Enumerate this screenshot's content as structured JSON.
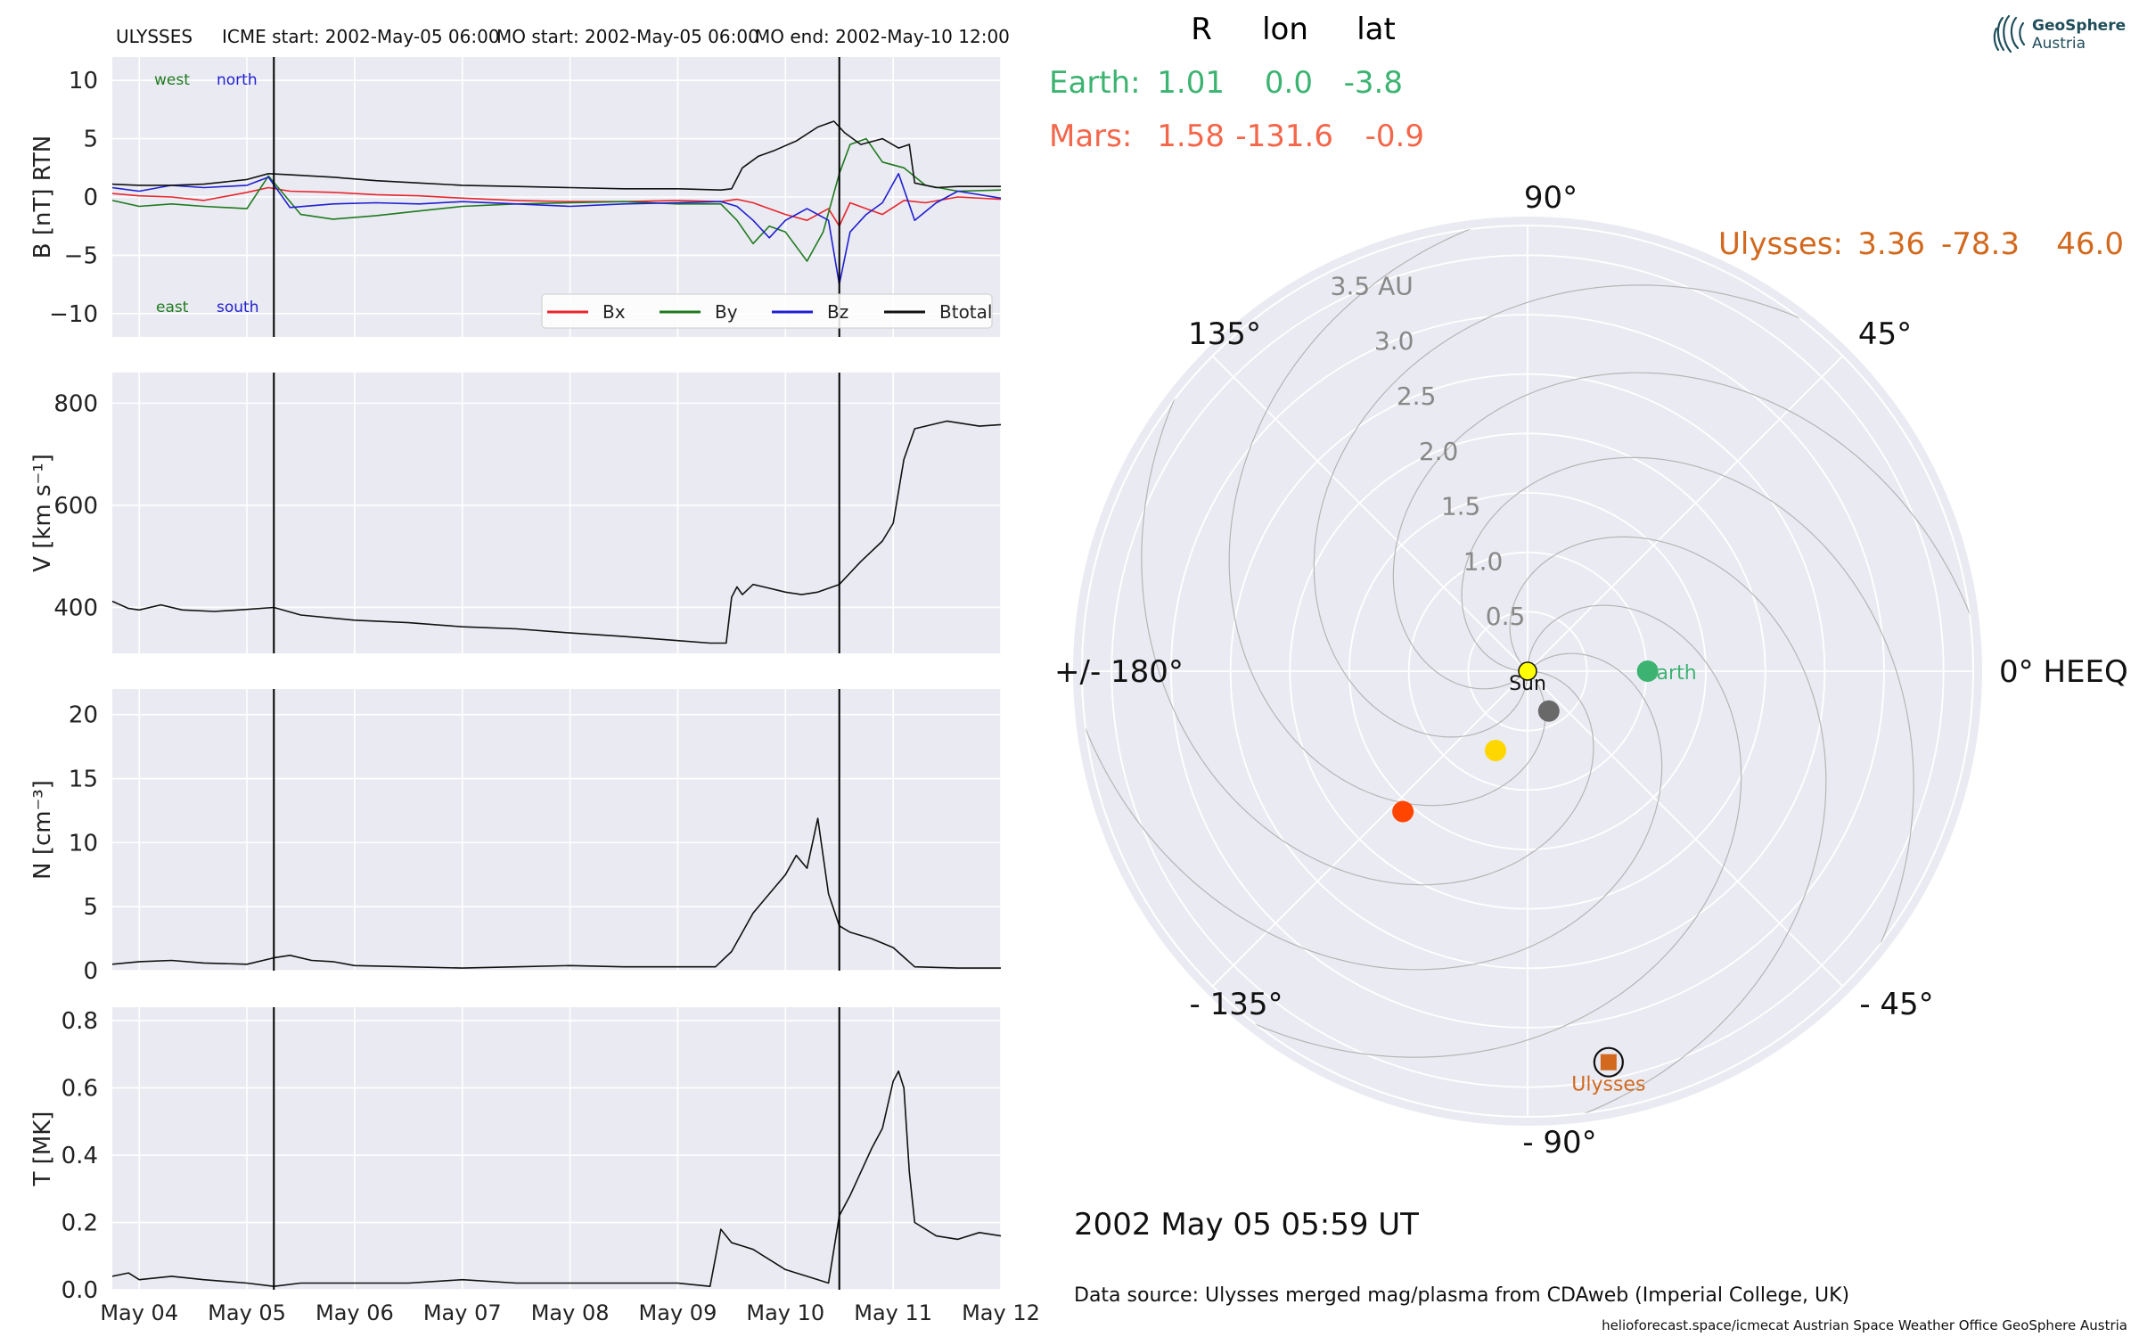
{
  "header": {
    "spacecraft": "ULYSSES",
    "icme_start": "ICME start: 2002-May-05 06:00",
    "mo_start": "MO start: 2002-May-05 06:00",
    "mo_end": "MO end: 2002-May-10 12:00"
  },
  "position_table": {
    "headers": [
      "R",
      "lon",
      "lat"
    ],
    "earth": {
      "label": "Earth:",
      "r": "1.01",
      "lon": "0.0",
      "lat": "-3.8",
      "color": "#3cb371"
    },
    "mars": {
      "label": "Mars:",
      "r": "1.58",
      "lon": "-131.6",
      "lat": "-0.9",
      "color": "#f4664a"
    },
    "ulysses": {
      "label": "Ulysses:",
      "r": "3.36",
      "lon": "-78.3",
      "lat": "46.0",
      "color": "#d2691e"
    }
  },
  "timestamp": "2002 May 05  05:59 UT",
  "data_source": "Data source: Ulysses merged mag/plasma from CDAweb (Imperial College, UK)",
  "footer": "helioforecast.space/icmecat   Austrian Space Weather Office   GeoSphere Austria",
  "logo": {
    "line1": "GeoSphere",
    "line2": "Austria",
    "color": "#1f4e5a"
  },
  "event_lines": {
    "icme_start_day": 5.25,
    "mo_end_day": 10.5
  },
  "x_axis": {
    "domain": [
      3.75,
      12.0
    ],
    "ticks": [
      4,
      5,
      6,
      7,
      8,
      9,
      10,
      11,
      12
    ],
    "labels": [
      "May 04",
      "May 05",
      "May 06",
      "May 07",
      "May 08",
      "May 09",
      "May 10",
      "May 11",
      "May 12"
    ]
  },
  "chart_data": [
    {
      "type": "line",
      "ylabel": "B [nT] RTN",
      "ylim": [
        -12,
        12
      ],
      "yticks": [
        -10,
        -5,
        0,
        5,
        10
      ],
      "ytick_labels": [
        "−10",
        "−5",
        "0",
        "5",
        "10"
      ],
      "corner_labels": {
        "west": "west",
        "north": "north",
        "east": "east",
        "south": "south"
      },
      "legend": [
        "Bx",
        "By",
        "Bz",
        "Btotal"
      ],
      "grid": true,
      "series": [
        {
          "name": "Bx",
          "color": "#e8262c",
          "x": [
            3.75,
            4.0,
            4.3,
            4.6,
            5.0,
            5.2,
            5.4,
            5.8,
            6.2,
            6.6,
            7.0,
            7.5,
            8.0,
            8.5,
            9.0,
            9.4,
            9.55,
            9.7,
            9.85,
            10.0,
            10.2,
            10.4,
            10.5,
            10.6,
            10.75,
            10.9,
            11.1,
            11.3,
            11.6,
            12.0
          ],
          "y": [
            0.3,
            0.1,
            0.0,
            -0.3,
            0.4,
            0.8,
            0.5,
            0.4,
            0.2,
            0.1,
            -0.1,
            -0.3,
            -0.4,
            -0.4,
            -0.3,
            -0.4,
            -0.2,
            -0.5,
            -1.0,
            -1.5,
            -2.0,
            -1.0,
            -2.5,
            -0.5,
            -1.0,
            -1.5,
            -0.3,
            -0.5,
            0.0,
            -0.2
          ]
        },
        {
          "name": "By",
          "color": "#1e7a1e",
          "x": [
            3.75,
            4.0,
            4.3,
            4.6,
            5.0,
            5.2,
            5.5,
            5.8,
            6.2,
            6.6,
            7.0,
            7.5,
            8.0,
            8.5,
            9.0,
            9.4,
            9.55,
            9.7,
            9.85,
            10.0,
            10.2,
            10.35,
            10.5,
            10.6,
            10.75,
            10.9,
            11.1,
            11.3,
            11.6,
            12.0
          ],
          "y": [
            -0.3,
            -0.8,
            -0.6,
            -0.8,
            -1.0,
            1.8,
            -1.5,
            -1.9,
            -1.6,
            -1.2,
            -0.8,
            -0.6,
            -0.5,
            -0.4,
            -0.6,
            -0.6,
            -2.0,
            -4.0,
            -2.5,
            -3.0,
            -5.5,
            -3.0,
            2.0,
            4.5,
            5.0,
            3.0,
            2.5,
            1.0,
            0.5,
            0.6
          ]
        },
        {
          "name": "Bz",
          "color": "#1f1fd1",
          "x": [
            3.75,
            4.0,
            4.3,
            4.6,
            5.0,
            5.2,
            5.4,
            5.8,
            6.2,
            6.6,
            7.0,
            7.5,
            8.0,
            8.5,
            9.0,
            9.4,
            9.55,
            9.7,
            9.85,
            10.0,
            10.2,
            10.4,
            10.5,
            10.6,
            10.75,
            10.9,
            11.05,
            11.2,
            11.4,
            11.6,
            12.0
          ],
          "y": [
            0.8,
            0.5,
            1.0,
            0.8,
            1.0,
            1.7,
            -0.9,
            -0.6,
            -0.5,
            -0.6,
            -0.4,
            -0.6,
            -0.8,
            -0.6,
            -0.5,
            -0.4,
            -0.8,
            -2.0,
            -3.5,
            -2.0,
            -1.0,
            -2.0,
            -7.5,
            -3.0,
            -1.5,
            -0.5,
            2.0,
            -2.0,
            -0.5,
            0.5,
            -0.1
          ]
        },
        {
          "name": "Btotal",
          "color": "#111111",
          "x": [
            3.75,
            4.0,
            4.3,
            4.6,
            5.0,
            5.2,
            5.4,
            5.8,
            6.2,
            6.6,
            7.0,
            7.5,
            8.0,
            8.5,
            9.0,
            9.4,
            9.5,
            9.6,
            9.75,
            9.9,
            10.1,
            10.3,
            10.45,
            10.55,
            10.7,
            10.9,
            11.05,
            11.15,
            11.2,
            11.4,
            11.6,
            12.0
          ],
          "y": [
            1.1,
            1.0,
            1.0,
            1.1,
            1.5,
            2.0,
            1.9,
            1.7,
            1.4,
            1.2,
            1.0,
            0.9,
            0.8,
            0.7,
            0.7,
            0.6,
            0.7,
            2.5,
            3.5,
            4.0,
            4.8,
            6.0,
            6.5,
            5.5,
            4.5,
            5.0,
            4.2,
            4.5,
            1.2,
            0.8,
            0.9,
            0.9
          ]
        }
      ]
    },
    {
      "type": "line",
      "ylabel": "V [km s⁻¹]",
      "ylim": [
        310,
        860
      ],
      "yticks": [
        400,
        600,
        800
      ],
      "ytick_labels": [
        "400",
        "600",
        "800"
      ],
      "grid": true,
      "series": [
        {
          "name": "V",
          "color": "#111111",
          "x": [
            3.75,
            3.9,
            4.0,
            4.2,
            4.4,
            4.7,
            5.0,
            5.25,
            5.5,
            6.0,
            6.5,
            7.0,
            7.5,
            8.0,
            8.5,
            9.0,
            9.3,
            9.45,
            9.5,
            9.55,
            9.6,
            9.7,
            9.8,
            10.0,
            10.15,
            10.3,
            10.5,
            10.7,
            10.9,
            11.0,
            11.1,
            11.2,
            11.5,
            11.8,
            12.0
          ],
          "y": [
            412,
            398,
            395,
            405,
            395,
            392,
            396,
            400,
            385,
            375,
            370,
            362,
            358,
            350,
            343,
            335,
            330,
            330,
            420,
            440,
            425,
            445,
            440,
            430,
            425,
            430,
            445,
            490,
            530,
            565,
            690,
            750,
            765,
            755,
            758
          ]
        }
      ]
    },
    {
      "type": "line",
      "ylabel": "N [cm⁻³]",
      "ylim": [
        0,
        22
      ],
      "yticks": [
        0,
        5,
        10,
        15,
        20
      ],
      "ytick_labels": [
        "0",
        "5",
        "10",
        "15",
        "20"
      ],
      "grid": true,
      "series": [
        {
          "name": "N",
          "color": "#111111",
          "x": [
            3.75,
            4.0,
            4.3,
            4.6,
            5.0,
            5.25,
            5.4,
            5.6,
            5.8,
            6.0,
            6.5,
            7.0,
            7.5,
            8.0,
            8.5,
            9.0,
            9.35,
            9.5,
            9.6,
            9.7,
            9.8,
            9.9,
            10.0,
            10.1,
            10.2,
            10.3,
            10.4,
            10.5,
            10.6,
            10.8,
            11.0,
            11.2,
            11.6,
            12.0
          ],
          "y": [
            0.5,
            0.7,
            0.8,
            0.6,
            0.5,
            1.0,
            1.2,
            0.8,
            0.7,
            0.4,
            0.3,
            0.2,
            0.3,
            0.4,
            0.3,
            0.3,
            0.3,
            1.5,
            3.0,
            4.5,
            5.5,
            6.5,
            7.5,
            9.0,
            8.0,
            11.9,
            6.0,
            3.5,
            3.0,
            2.5,
            1.8,
            0.3,
            0.2,
            0.2
          ]
        }
      ]
    },
    {
      "type": "line",
      "ylabel": "T [MK]",
      "ylim": [
        0,
        0.84
      ],
      "yticks": [
        0.0,
        0.2,
        0.4,
        0.6,
        0.8
      ],
      "ytick_labels": [
        "0.0",
        "0.2",
        "0.4",
        "0.6",
        "0.8"
      ],
      "grid": true,
      "series": [
        {
          "name": "T",
          "color": "#111111",
          "x": [
            3.75,
            3.9,
            4.0,
            4.3,
            4.6,
            5.0,
            5.25,
            5.5,
            6.0,
            6.5,
            7.0,
            7.5,
            8.0,
            8.5,
            9.0,
            9.3,
            9.4,
            9.5,
            9.6,
            9.7,
            9.8,
            9.9,
            10.0,
            10.2,
            10.4,
            10.5,
            10.6,
            10.7,
            10.8,
            10.9,
            11.0,
            11.05,
            11.1,
            11.15,
            11.2,
            11.4,
            11.6,
            11.8,
            12.0
          ],
          "y": [
            0.04,
            0.05,
            0.03,
            0.04,
            0.03,
            0.02,
            0.01,
            0.02,
            0.02,
            0.02,
            0.03,
            0.02,
            0.02,
            0.02,
            0.02,
            0.01,
            0.18,
            0.14,
            0.13,
            0.12,
            0.1,
            0.08,
            0.06,
            0.04,
            0.02,
            0.22,
            0.28,
            0.35,
            0.42,
            0.48,
            0.62,
            0.65,
            0.6,
            0.35,
            0.2,
            0.16,
            0.15,
            0.17,
            0.16
          ]
        }
      ]
    },
    {
      "type": "scatter",
      "projection": "polar",
      "angle_labels": [
        "90°",
        "45°",
        "0° HEEQ",
        "- 45°",
        "- 90°",
        "- 135°",
        "+/- 180°",
        "135°"
      ],
      "radial_tick_labels": [
        "0.5",
        "1.0",
        "1.5",
        "2.0",
        "2.5",
        "3.0",
        "3.5 AU"
      ],
      "radial_ticks": [
        0.5,
        1.0,
        1.5,
        2.0,
        2.5,
        3.0,
        3.5
      ],
      "rlim": [
        0,
        3.75
      ],
      "label_angle_deg": 112,
      "spiral_offsets_deg": [
        0,
        45,
        90,
        135,
        180,
        225,
        270,
        315
      ],
      "bodies": [
        {
          "name": "Sun",
          "label": "Sun",
          "r": 0.0,
          "lon": 0.0,
          "color": "#ffff00",
          "marker": "circle-outlined"
        },
        {
          "name": "Earth",
          "label": "Earth",
          "r": 1.01,
          "lon": 0.0,
          "color": "#3cb371",
          "marker": "circle"
        },
        {
          "name": "Mercury",
          "r": 0.38,
          "lon": -62,
          "color": "#696969",
          "marker": "circle"
        },
        {
          "name": "Venus",
          "r": 0.72,
          "lon": -112,
          "color": "#ffd700",
          "marker": "circle"
        },
        {
          "name": "Mars",
          "r": 1.58,
          "lon": -131.6,
          "color": "#ff4500",
          "marker": "circle"
        },
        {
          "name": "Ulysses",
          "label": "Ulysses",
          "r": 3.36,
          "lon": -78.3,
          "color": "#d2691e",
          "marker": "square-ring"
        }
      ]
    }
  ]
}
